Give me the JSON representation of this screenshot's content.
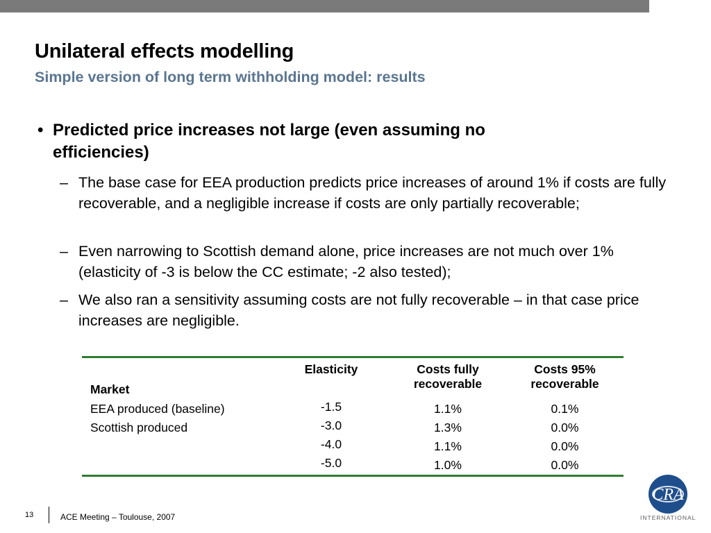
{
  "slide": {
    "title": "Unilateral effects modelling",
    "subtitle": "Simple version of long term withholding model: results",
    "bullet": "Predicted price increases not large (even assuming no efficiencies)",
    "sub_bullets": [
      "The base case for EEA production predicts price increases of around 1% if costs are fully recoverable, and a negligible increase if costs are only partially recoverable;",
      "Even narrowing to Scottish demand alone, price increases are not much over 1% (elasticity of -3 is below the CC estimate; -2 also tested);",
      "We also ran a sensitivity assuming costs are not fully recoverable – in that case price increases are negligible."
    ]
  },
  "table": {
    "headers": {
      "market": "Market",
      "elasticity": "Elasticity",
      "costs_full": "Costs fully recoverable",
      "costs_95": "Costs 95% recoverable"
    },
    "rows": [
      {
        "market": "EEA produced (baseline)",
        "elasticity": "-1.5",
        "costs_full": "1.1%",
        "costs_95": "0.1%"
      },
      {
        "market": "Scottish produced",
        "elasticity": "-3.0",
        "costs_full": "1.3%",
        "costs_95": "0.0%"
      },
      {
        "market": "",
        "elasticity": "-4.0",
        "costs_full": "1.1%",
        "costs_95": "0.0%"
      },
      {
        "market": "",
        "elasticity": "-5.0",
        "costs_full": "1.0%",
        "costs_95": "0.0%"
      }
    ]
  },
  "footer": {
    "page_number": "13",
    "meeting": "ACE Meeting – Toulouse, 2007"
  },
  "logo": {
    "monogram": "CRA",
    "label": "INTERNATIONAL"
  },
  "colors": {
    "top_bar": "#7a7a7a",
    "subtitle": "#5a7591",
    "table_rule": "#2e7d32",
    "logo_blue": "#1f4e8c"
  }
}
